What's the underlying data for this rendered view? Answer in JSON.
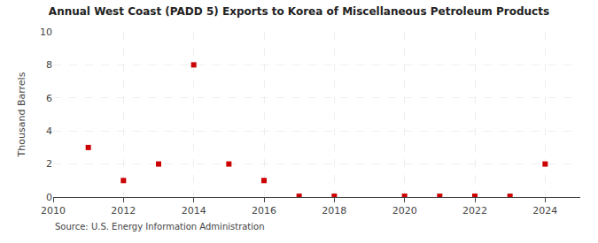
{
  "chart_data": {
    "type": "scatter",
    "title": "Annual West Coast (PADD 5) Exports to Korea of Miscellaneous Petroleum Products",
    "ylabel": "Thousand Barrels",
    "annotations": [
      "Source: U.S. Energy Information Administration"
    ],
    "x": [
      2011,
      2012,
      2013,
      2014,
      2015,
      2016,
      2017,
      2018,
      2020,
      2021,
      2022,
      2023,
      2024
    ],
    "values": [
      3,
      1,
      2,
      8,
      2,
      1,
      0.05,
      0.05,
      0.05,
      0.05,
      0.05,
      0.05,
      2
    ],
    "color": "#cc0000",
    "marker": "square",
    "xlim": [
      2010,
      2025
    ],
    "xticks": [
      2010,
      2012,
      2014,
      2016,
      2018,
      2020,
      2022,
      2024
    ],
    "ylim": [
      0,
      10
    ],
    "yticks": [
      0,
      2,
      4,
      6,
      8,
      10
    ],
    "grid": true
  }
}
